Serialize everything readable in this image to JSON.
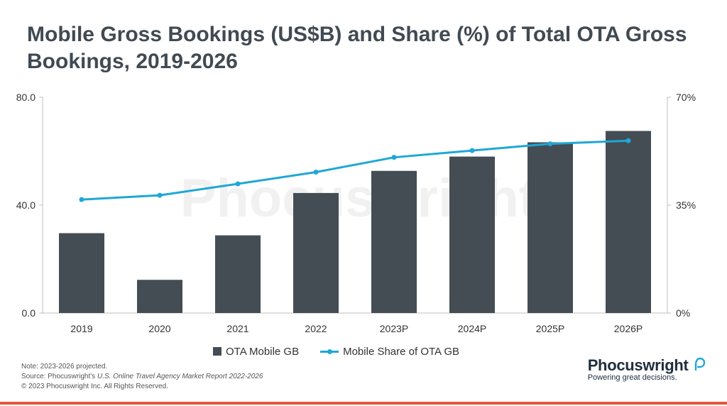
{
  "title": "Mobile Gross Bookings (US$B) and Share (%) of Total OTA Gross Bookings, 2019-2026",
  "watermark": "Phocuswright",
  "chart_data": {
    "type": "bar",
    "categories": [
      "2019",
      "2020",
      "2021",
      "2022",
      "2023P",
      "2024P",
      "2025P",
      "2026P"
    ],
    "series": [
      {
        "name": "OTA Mobile GB",
        "type": "bar",
        "axis": "left",
        "values": [
          29.6,
          12.3,
          28.8,
          44.5,
          52.7,
          58.0,
          63.3,
          67.5
        ]
      },
      {
        "name": "Mobile Share of OTA GB",
        "type": "line",
        "axis": "right",
        "values": [
          36.8,
          38.2,
          41.9,
          45.7,
          50.5,
          52.7,
          54.9,
          55.9
        ]
      }
    ],
    "ylim_left": [
      0,
      80
    ],
    "yticks_left": [
      "0.0",
      "40.0",
      "80.0"
    ],
    "ylim_right": [
      0,
      70
    ],
    "yticks_right": [
      "0%",
      "35%",
      "70%"
    ],
    "colors": {
      "bar": "#444c54",
      "line": "#1fa7d6"
    },
    "legend_position": "bottom",
    "grid": false
  },
  "footnotes": {
    "note": "Note: 2023-2026 projected.",
    "source_prefix": "Source: Phocuswright's ",
    "source_title": "U.S. Online Travel Agency Market Report 2022-2026",
    "copyright": "© 2023 Phocuswright Inc. All Rights Reserved."
  },
  "brand": {
    "name": "Phocuswright",
    "tagline": "Powering great decisions."
  },
  "accent_color": "#e2573b"
}
